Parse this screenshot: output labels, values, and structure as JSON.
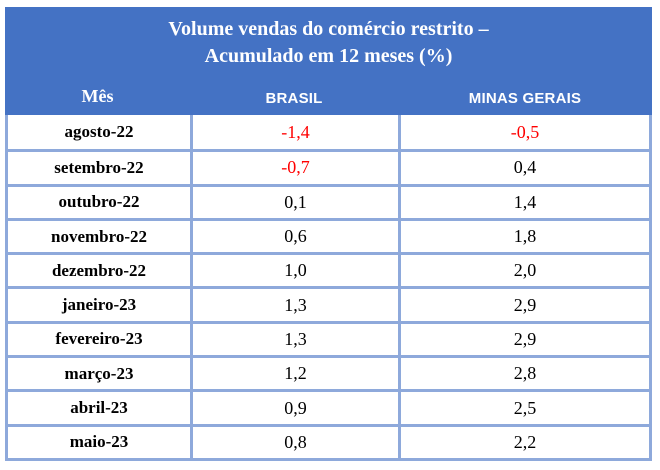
{
  "chart_data": {
    "type": "table",
    "title": "Volume vendas do comércio restrito – Acumulado em 12 meses (%)",
    "title_line1": "Volume vendas do comércio restrito –",
    "title_line2": "Acumulado em 12 meses (%)",
    "columns": [
      "Mês",
      "BRASIL",
      "MINAS GERAIS"
    ],
    "rows": [
      {
        "month": "agosto-22",
        "brasil": "-1,4",
        "minas_gerais": "-0,5"
      },
      {
        "month": "setembro-22",
        "brasil": "-0,7",
        "minas_gerais": "0,4"
      },
      {
        "month": "outubro-22",
        "brasil": "0,1",
        "minas_gerais": "1,4"
      },
      {
        "month": "novembro-22",
        "brasil": "0,6",
        "minas_gerais": "1,8"
      },
      {
        "month": "dezembro-22",
        "brasil": "1,0",
        "minas_gerais": "2,0"
      },
      {
        "month": "janeiro-23",
        "brasil": "1,3",
        "minas_gerais": "2,9"
      },
      {
        "month": "fevereiro-23",
        "brasil": "1,3",
        "minas_gerais": "2,9"
      },
      {
        "month": "março-23",
        "brasil": "1,2",
        "minas_gerais": "2,8"
      },
      {
        "month": "abril-23",
        "brasil": "0,9",
        "minas_gerais": "2,5"
      },
      {
        "month": "maio-23",
        "brasil": "0,8",
        "minas_gerais": "2,2"
      }
    ]
  },
  "colors": {
    "header_bg": "#4472C4",
    "grid_border": "#8EA9DB",
    "negative": "#FF0000",
    "text": "#000000"
  }
}
